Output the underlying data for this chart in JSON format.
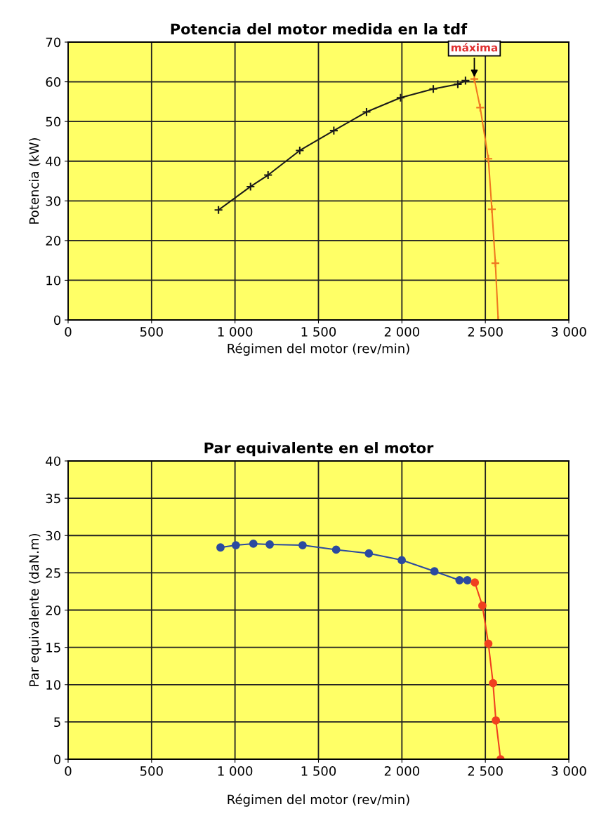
{
  "chart_data": [
    {
      "type": "line",
      "title": "Potencia del motor medida en la tdf",
      "xlabel": "Régimen del motor (rev/min)",
      "ylabel": "Potencia (kW)",
      "series": [
        {
          "color": "#1a1a1a",
          "x": [
            901,
            1093,
            1198,
            1388,
            1592,
            1788,
            1992,
            2188,
            2335,
            2381
          ],
          "values": [
            27.7,
            33.6,
            36.5,
            42.7,
            47.7,
            52.4,
            56.0,
            58.2,
            59.4,
            60.3
          ]
        },
        {
          "color": "#f07820",
          "x": [
            2434,
            2469,
            2518,
            2539,
            2560,
            2577
          ],
          "values": [
            60.7,
            53.5,
            40.6,
            27.9,
            14.3,
            0
          ]
        }
      ],
      "marker": "cross",
      "grid": true,
      "xlim": [
        0,
        3000
      ],
      "xticks": [
        0,
        500,
        {
          "value": 1000,
          "label": "1 000"
        },
        {
          "value": 1500,
          "label": "1 500"
        },
        {
          "value": 2000,
          "label": "2 000"
        },
        {
          "value": 2500,
          "label": "2 500"
        },
        {
          "value": 3000,
          "label": "3 000"
        }
      ],
      "ylim": [
        0,
        70
      ],
      "yticks": [
        0,
        10,
        20,
        30,
        40,
        50,
        60,
        70
      ],
      "annotations": [
        {
          "text": "máxima",
          "x": 2434,
          "y": 60.7
        }
      ]
    },
    {
      "type": "line",
      "title": "Par equivalente en el motor",
      "xlabel": "Régimen del motor (rev/min)",
      "ylabel": "Par equivalente (daN.m)",
      "series": [
        {
          "color": "#2b4aa0",
          "x": [
            913,
            1005,
            1110,
            1208,
            1405,
            1606,
            1802,
            1999,
            2195,
            2345,
            2392
          ],
          "values": [
            28.4,
            28.7,
            28.9,
            28.8,
            28.7,
            28.1,
            27.6,
            26.7,
            25.2,
            24.0,
            24.0
          ]
        },
        {
          "color": "#f04020",
          "x": [
            2437,
            2482,
            2518,
            2546,
            2563,
            2591
          ],
          "values": [
            23.7,
            20.6,
            15.5,
            10.2,
            5.2,
            0
          ]
        }
      ],
      "marker": "circle",
      "grid": true,
      "xlim": [
        0,
        3000
      ],
      "xticks": [
        0,
        500,
        {
          "value": 1000,
          "label": "1 000"
        },
        {
          "value": 1500,
          "label": "1 500"
        },
        {
          "value": 2000,
          "label": "2 000"
        },
        {
          "value": 2500,
          "label": "2 500"
        },
        {
          "value": 3000,
          "label": "3 000"
        }
      ],
      "ylim": [
        0,
        40
      ],
      "yticks": [
        0,
        5,
        10,
        15,
        20,
        25,
        30,
        35,
        40
      ]
    }
  ]
}
